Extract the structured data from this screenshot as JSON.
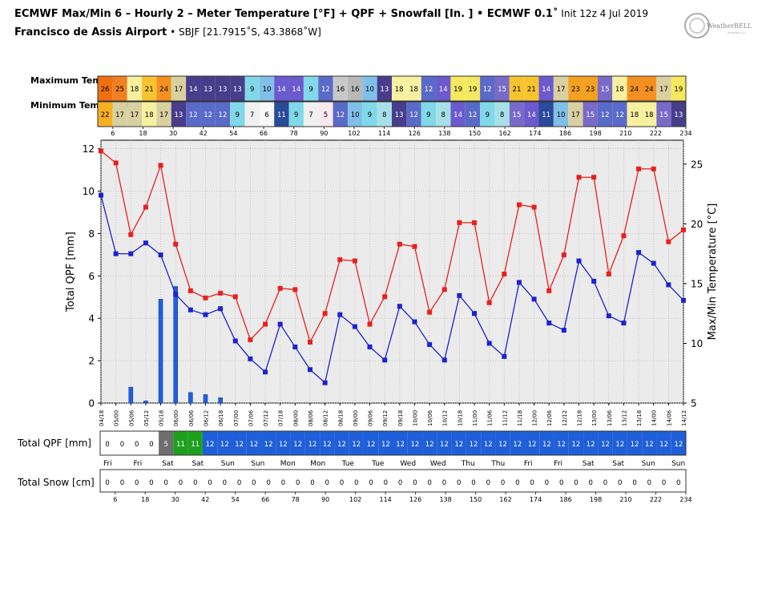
{
  "header": {
    "title_main": "ECMWF Max/Min 6 – Hourly 2 – Meter Temperature [°F] + QPF + Snowfall [In. ] • ECMWF 0.1˚",
    "title_init": " Init 12z 4 Jul 2019",
    "location_name": "Francisco de Assis Airport",
    "location_detail": " • SBJF [21.7915˚S, 43.3868˚W]",
    "logo_text": "WeatherBELL",
    "logo_sub": "Analytics LLC"
  },
  "labels": {
    "max_temp": "Maximum Temperature",
    "min_temp": "Minimum Temperature",
    "total_qpf": "Total QPF [mm]",
    "total_snow": "Total Snow [cm]"
  },
  "colors": {
    "max_line": "#e8201e",
    "min_line": "#1c22d0",
    "qpf_bar": "#1f5fe0",
    "qpf_row_blue": "#1f5fd8",
    "qpf_row_green": "#1ea01e",
    "qpf_row_gray": "#6e6e6e",
    "plot_bg": "#ebebeb"
  },
  "chart_data": {
    "type": "line",
    "xlabel": "",
    "ylabel": "Total QPF  [mm]",
    "y2label": "Max/Min Temperature  [°C]",
    "ylim": [
      0,
      12.4
    ],
    "y2lim": [
      5,
      27
    ],
    "yticks": [
      0,
      2,
      4,
      6,
      8,
      10,
      12
    ],
    "y2ticks": [
      5,
      10,
      15,
      20,
      25
    ],
    "grid": true,
    "x_hours_range": [
      0,
      234
    ],
    "x_time_labels": [
      "04/18",
      "05/00",
      "05/06",
      "05/12",
      "05/18",
      "06/00",
      "06/06",
      "06/12",
      "06/18",
      "07/00",
      "07/06",
      "07/12",
      "07/18",
      "08/00",
      "08/06",
      "08/12",
      "08/18",
      "09/00",
      "09/06",
      "09/12",
      "09/18",
      "10/00",
      "10/06",
      "10/12",
      "10/18",
      "11/00",
      "11/06",
      "11/12",
      "11/18",
      "12/00",
      "12/06",
      "12/12",
      "12/18",
      "13/00",
      "13/06",
      "13/12",
      "13/18",
      "14/00",
      "14/06",
      "14/12"
    ],
    "hour_ticks": [
      6,
      18,
      30,
      42,
      54,
      66,
      78,
      90,
      102,
      114,
      126,
      138,
      150,
      162,
      174,
      186,
      198,
      210,
      222,
      234
    ],
    "series": [
      {
        "name": "Max",
        "x": [
          0,
          6,
          12,
          18,
          24,
          30,
          36,
          42,
          48,
          54,
          60,
          66,
          72,
          78,
          84,
          90,
          96,
          102,
          108,
          114,
          120,
          126,
          132,
          138,
          144,
          150,
          156,
          162,
          168,
          174,
          180,
          186,
          192,
          198,
          204,
          210,
          216,
          222,
          228,
          234
        ],
        "values": [
          26.1,
          25.1,
          19.1,
          21.4,
          24.9,
          18.3,
          14.4,
          13.8,
          14.2,
          13.9,
          10.3,
          11.6,
          14.6,
          14.5,
          10.1,
          12.5,
          17.0,
          16.9,
          11.6,
          13.9,
          18.3,
          18.1,
          12.6,
          14.5,
          20.1,
          20.1,
          13.4,
          15.8,
          21.6,
          21.4,
          14.4,
          17.4,
          23.9,
          23.9,
          15.8,
          19.0,
          24.6,
          24.6,
          18.5,
          19.5
        ]
      },
      {
        "name": "Min",
        "x": [
          0,
          6,
          12,
          18,
          24,
          30,
          36,
          42,
          48,
          54,
          60,
          66,
          72,
          78,
          84,
          90,
          96,
          102,
          108,
          114,
          120,
          126,
          132,
          138,
          144,
          150,
          156,
          162,
          168,
          174,
          180,
          186,
          192,
          198,
          204,
          210,
          216,
          222,
          228,
          234
        ],
        "values": [
          22.4,
          17.5,
          17.5,
          18.4,
          17.4,
          14.1,
          12.8,
          12.4,
          12.9,
          10.2,
          8.7,
          7.6,
          11.6,
          9.7,
          7.8,
          6.7,
          12.4,
          11.4,
          9.7,
          8.6,
          13.1,
          11.8,
          9.9,
          8.6,
          14.0,
          12.5,
          10.0,
          8.9,
          15.1,
          13.7,
          11.7,
          11.1,
          16.9,
          15.2,
          12.3,
          11.7,
          17.6,
          16.7,
          14.9,
          13.6
        ]
      },
      {
        "name": "QPF",
        "x": [
          0,
          6,
          12,
          18,
          24,
          30,
          36,
          42,
          48,
          54,
          60,
          66,
          72,
          78,
          84,
          90,
          96,
          102,
          108,
          114,
          120,
          126,
          132,
          138,
          144,
          150,
          156,
          162,
          168,
          174,
          180,
          186,
          192,
          198,
          204,
          210,
          216,
          222,
          228,
          234
        ],
        "values": [
          0,
          0,
          0.75,
          0.1,
          4.9,
          5.5,
          0.5,
          0.4,
          0.25,
          0,
          0,
          0,
          0,
          0,
          0,
          0,
          0,
          0,
          0,
          0,
          0,
          0,
          0,
          0,
          0,
          0,
          0,
          0,
          0,
          0,
          0,
          0,
          0,
          0,
          0,
          0,
          0,
          0,
          0,
          0
        ]
      }
    ]
  },
  "max_table": [
    {
      "v": "26",
      "c": "#f07010"
    },
    {
      "v": "25",
      "c": "#f08022"
    },
    {
      "v": "18",
      "c": "#f6f0a0"
    },
    {
      "v": "21",
      "c": "#f7c430"
    },
    {
      "v": "24",
      "c": "#f49020"
    },
    {
      "v": "17",
      "c": "#d8d0a0"
    },
    {
      "v": "14",
      "c": "#483d8b"
    },
    {
      "v": "13",
      "c": "#483d8b"
    },
    {
      "v": "13",
      "c": "#483d8b"
    },
    {
      "v": "13",
      "c": "#483d8b"
    },
    {
      "v": "9",
      "c": "#80d8e8"
    },
    {
      "v": "10",
      "c": "#80c0e8"
    },
    {
      "v": "14",
      "c": "#6a5acd"
    },
    {
      "v": "14",
      "c": "#6a5acd"
    },
    {
      "v": "9",
      "c": "#80d8e8"
    },
    {
      "v": "12",
      "c": "#5a6ac8"
    },
    {
      "v": "16",
      "c": "#c8c8c8"
    },
    {
      "v": "16",
      "c": "#b8b8b8"
    },
    {
      "v": "10",
      "c": "#80c0e8"
    },
    {
      "v": "13",
      "c": "#483d8b"
    },
    {
      "v": "18",
      "c": "#f6f0a0"
    },
    {
      "v": "18",
      "c": "#f6f0a0"
    },
    {
      "v": "12",
      "c": "#5a6ac8"
    },
    {
      "v": "14",
      "c": "#6a5acd"
    },
    {
      "v": "19",
      "c": "#f5e860"
    },
    {
      "v": "19",
      "c": "#f5e860"
    },
    {
      "v": "12",
      "c": "#5a6ac8"
    },
    {
      "v": "15",
      "c": "#7a6ac8"
    },
    {
      "v": "21",
      "c": "#f7c430"
    },
    {
      "v": "21",
      "c": "#f7c430"
    },
    {
      "v": "14",
      "c": "#6a5acd"
    },
    {
      "v": "17",
      "c": "#d8d0a0"
    },
    {
      "v": "23",
      "c": "#f4a020"
    },
    {
      "v": "23",
      "c": "#f4a020"
    },
    {
      "v": "15",
      "c": "#7a6ac8"
    },
    {
      "v": "18",
      "c": "#f6f0a0"
    },
    {
      "v": "24",
      "c": "#f49020"
    },
    {
      "v": "24",
      "c": "#f49020"
    },
    {
      "v": "17",
      "c": "#d8d0a0"
    },
    {
      "v": "19",
      "c": "#f5e860"
    }
  ],
  "min_table": [
    {
      "v": "22",
      "c": "#f7b020"
    },
    {
      "v": "17",
      "c": "#d8d0a0"
    },
    {
      "v": "17",
      "c": "#d8d0a0"
    },
    {
      "v": "18",
      "c": "#f6f0a0"
    },
    {
      "v": "17",
      "c": "#d8d0a0"
    },
    {
      "v": "13",
      "c": "#483d8b"
    },
    {
      "v": "12",
      "c": "#5a6ac8"
    },
    {
      "v": "12",
      "c": "#5a6ac8"
    },
    {
      "v": "12",
      "c": "#5a6ac8"
    },
    {
      "v": "9",
      "c": "#80d8e8"
    },
    {
      "v": "7",
      "c": "#f0f0f0"
    },
    {
      "v": "6",
      "c": "#f8f8f8"
    },
    {
      "v": "11",
      "c": "#2a4a9a"
    },
    {
      "v": "9",
      "c": "#80d8e8"
    },
    {
      "v": "7",
      "c": "#f0f0f0"
    },
    {
      "v": "5",
      "c": "#f8e8f0"
    },
    {
      "v": "12",
      "c": "#5a6ac8"
    },
    {
      "v": "10",
      "c": "#80c0e8"
    },
    {
      "v": "9",
      "c": "#80d8e8"
    },
    {
      "v": "8",
      "c": "#a8e0e8"
    },
    {
      "v": "13",
      "c": "#483d8b"
    },
    {
      "v": "12",
      "c": "#5a6ac8"
    },
    {
      "v": "9",
      "c": "#80d8e8"
    },
    {
      "v": "8",
      "c": "#a8e0e8"
    },
    {
      "v": "14",
      "c": "#6a5acd"
    },
    {
      "v": "12",
      "c": "#5a6ac8"
    },
    {
      "v": "9",
      "c": "#80d8e8"
    },
    {
      "v": "8",
      "c": "#a8e0e8"
    },
    {
      "v": "15",
      "c": "#7a6ac8"
    },
    {
      "v": "14",
      "c": "#6a5acd"
    },
    {
      "v": "11",
      "c": "#2a4a9a"
    },
    {
      "v": "10",
      "c": "#80c0e8"
    },
    {
      "v": "17",
      "c": "#d8d0a0"
    },
    {
      "v": "15",
      "c": "#7a6ac8"
    },
    {
      "v": "12",
      "c": "#5a6ac8"
    },
    {
      "v": "12",
      "c": "#5a6ac8"
    },
    {
      "v": "18",
      "c": "#f6f0a0"
    },
    {
      "v": "18",
      "c": "#f6f0a0"
    },
    {
      "v": "15",
      "c": "#7a6ac8"
    },
    {
      "v": "13",
      "c": "#483d8b"
    }
  ],
  "qpf_table": [
    "0",
    "0",
    "0",
    "0",
    "5",
    "11",
    "11",
    "12",
    "12",
    "12",
    "12",
    "12",
    "12",
    "12",
    "12",
    "12",
    "12",
    "12",
    "12",
    "12",
    "12",
    "12",
    "12",
    "12",
    "12",
    "12",
    "12",
    "12",
    "12",
    "12",
    "12",
    "12",
    "12",
    "12",
    "12",
    "12",
    "12",
    "12",
    "12",
    "12"
  ],
  "snow_table": [
    "0",
    "0",
    "0",
    "0",
    "0",
    "0",
    "0",
    "0",
    "0",
    "0",
    "0",
    "0",
    "0",
    "0",
    "0",
    "0",
    "0",
    "0",
    "0",
    "0",
    "0",
    "0",
    "0",
    "0",
    "0",
    "0",
    "0",
    "0",
    "0",
    "0",
    "0",
    "0",
    "0",
    "0",
    "0",
    "0",
    "0",
    "0",
    "0",
    "0"
  ],
  "days": [
    {
      "label": "Fri",
      "hour": 3
    },
    {
      "label": "Fri",
      "hour": 15
    },
    {
      "label": "Sat",
      "hour": 27
    },
    {
      "label": "Sat",
      "hour": 39
    },
    {
      "label": "Sun",
      "hour": 51
    },
    {
      "label": "Sun",
      "hour": 63
    },
    {
      "label": "Mon",
      "hour": 75
    },
    {
      "label": "Mon",
      "hour": 87
    },
    {
      "label": "Tue",
      "hour": 99
    },
    {
      "label": "Tue",
      "hour": 111
    },
    {
      "label": "Wed",
      "hour": 123
    },
    {
      "label": "Wed",
      "hour": 135
    },
    {
      "label": "Thu",
      "hour": 147
    },
    {
      "label": "Thu",
      "hour": 159
    },
    {
      "label": "Fri",
      "hour": 171
    },
    {
      "label": "Fri",
      "hour": 183
    },
    {
      "label": "Sat",
      "hour": 195
    },
    {
      "label": "Sat",
      "hour": 207
    },
    {
      "label": "Sun",
      "hour": 219
    },
    {
      "label": "Sun",
      "hour": 231
    }
  ]
}
